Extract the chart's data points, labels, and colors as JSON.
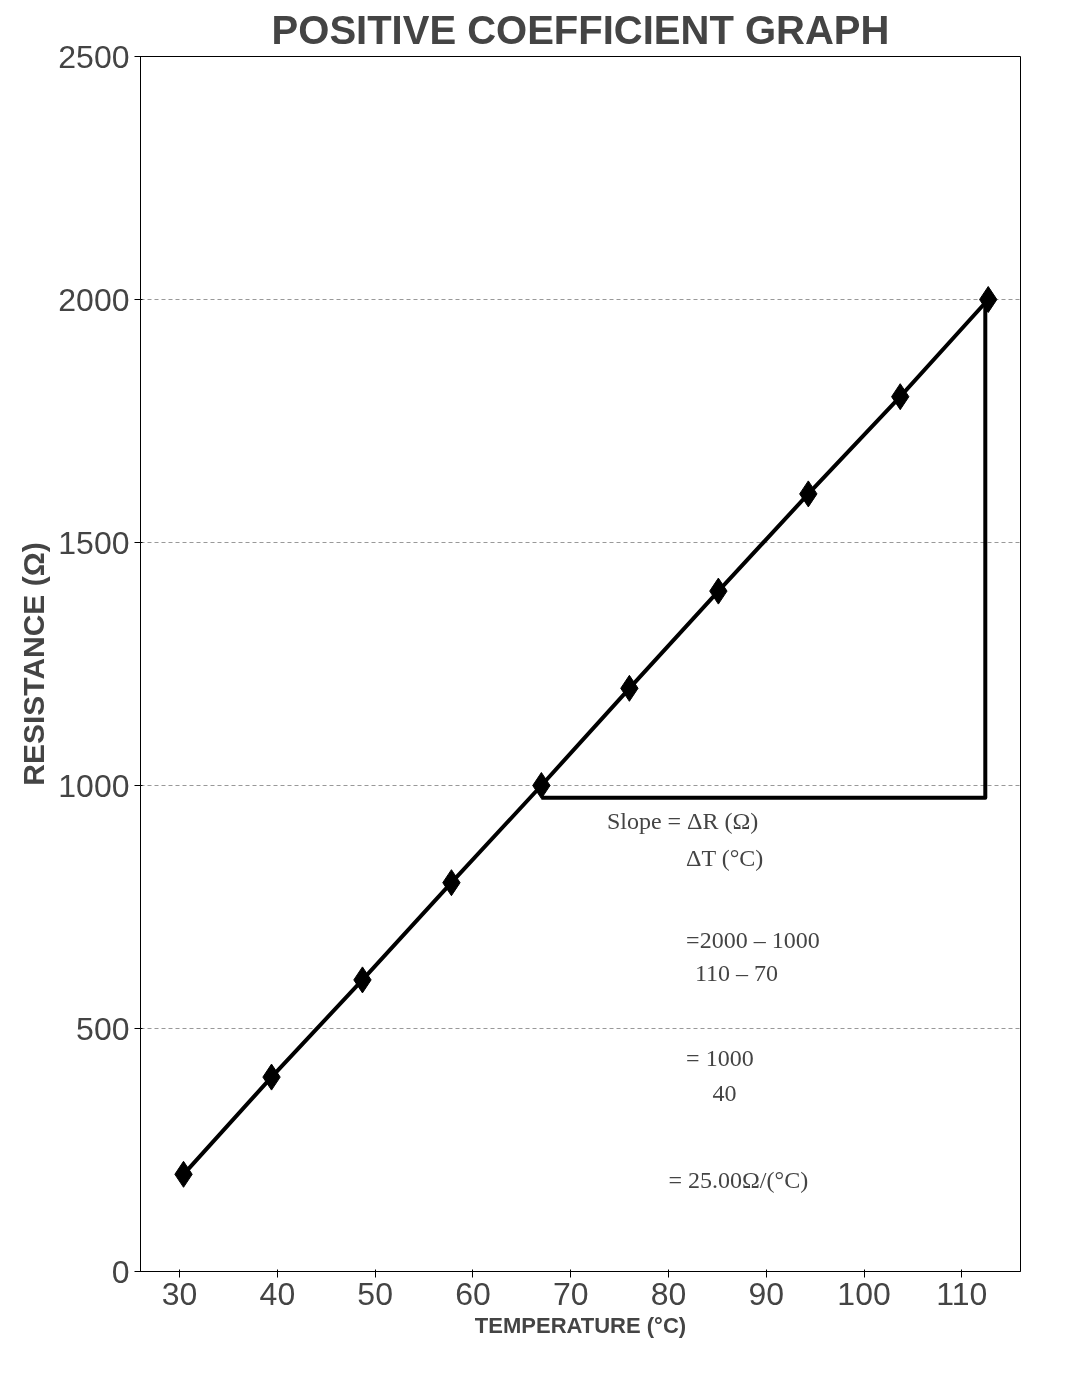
{
  "chart_data": {
    "type": "line",
    "title": "POSITIVE COEFFICIENT GRAPH",
    "xlabel": "TEMPERATURE (°C)",
    "ylabel": "RESISTANCE (Ω)",
    "xlim": [
      26,
      116
    ],
    "xticks": [
      30,
      40,
      50,
      60,
      70,
      80,
      90,
      100,
      110
    ],
    "ylim": [
      0,
      2500
    ],
    "yticks": [
      0,
      500,
      1000,
      1500,
      2000,
      2500
    ],
    "grid": "y",
    "marker": "diamond",
    "line_style": "solid",
    "series": [
      {
        "color": "#000000",
        "x": [
          30.4,
          39.4,
          48.7,
          57.8,
          67,
          76,
          85.1,
          94.3,
          103.7,
          112.7
        ],
        "values": [
          200,
          400,
          600,
          800,
          1000,
          1200,
          1400,
          1600,
          1800,
          2000
        ]
      },
      {
        "type": "line",
        "marker": "none",
        "color": "#000000",
        "x": [
          67,
          112.4,
          112.4
        ],
        "values": [
          975,
          975,
          2000
        ]
      }
    ],
    "annotations": [
      "Slope = ΔR (Ω)",
      "ΔT (°C)",
      "=2000 – 1000",
      "110 – 70",
      "= 1000",
      "40",
      "= 25.00Ω/(°C)"
    ]
  }
}
